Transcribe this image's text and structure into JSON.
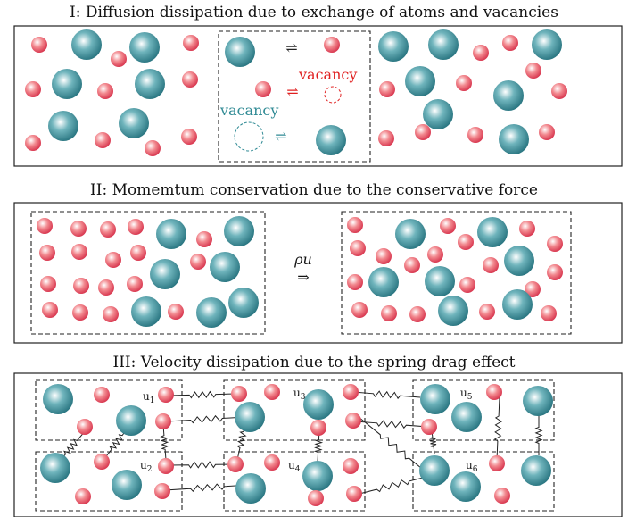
{
  "panels": {
    "diffusion": {
      "title": "I: Diffusion dissipation due to exchange of atoms and vacancies",
      "vacancy_label_small": "vacancy",
      "vacancy_label_large": "vacancy",
      "exchange_symbol": "⇌"
    },
    "momentum": {
      "title": "II: Momemtum conservation due to the conservative force",
      "flux_label": "ρu",
      "arrow_symbol": "⇒"
    },
    "velocity": {
      "title": "III: Velocity dissipation due to the spring drag effect",
      "velocity_labels": [
        "u1",
        "u2",
        "u3",
        "u4",
        "u5",
        "u6"
      ]
    }
  },
  "colors": {
    "small_atom": "#e8536a",
    "large_atom": "#2e8a94",
    "vacancy_small": "#e02020",
    "vacancy_large": "#2f8a94"
  }
}
